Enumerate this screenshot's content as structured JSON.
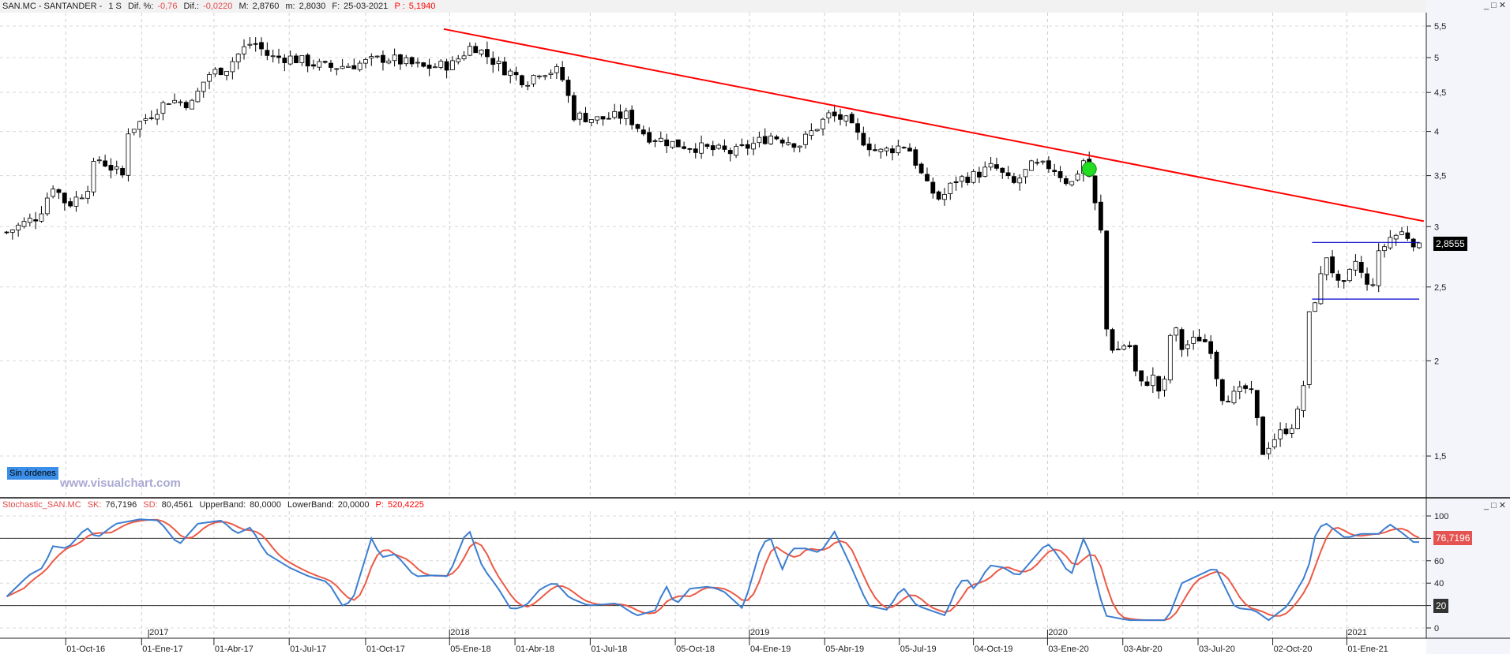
{
  "header": {
    "symbol": "SAN.MC - SANTANDER -",
    "period": "1 S",
    "dif_pct_label": "Dif. %:",
    "dif_pct": "-0,76",
    "dif_label": "Dif.:",
    "dif": "-0,0220",
    "max_label": "M:",
    "max": "2,8760",
    "min_label": "m:",
    "min": "2,8030",
    "date_label": "F:",
    "date": "25-03-2021",
    "p_label": "P :",
    "p": "5,1940"
  },
  "window_buttons": {
    "minimize": "_",
    "maximize": "□",
    "close": "✕"
  },
  "orders_badge": "Sin órdenes",
  "watermark": "www.visualchart.com",
  "last_price_tag": "2,8555",
  "stochastic_header": {
    "name": "Stochastic_SAN.MC",
    "sk_label": "SK:",
    "sk": "76,7196",
    "sd_label": "SD:",
    "sd": "80,4561",
    "upper_label": "UpperBand:",
    "upper": "80,0000",
    "lower_label": "LowerBand:",
    "lower": "20,0000",
    "p_label": "P:",
    "p": "520,4225"
  },
  "stoch_tags": {
    "sk_value": "76,7196",
    "lower_band": "20"
  },
  "colors": {
    "up_body": "#ffffff",
    "down_body": "#000000",
    "trendline": "#ff0000",
    "range_lines": "#0000cc",
    "signal_dot": "#22dd22",
    "sk": "#3c7ed0",
    "sd": "#ec5a45"
  },
  "chart_data": [
    {
      "type": "candlestick",
      "title": "SAN.MC - SANTANDER - 1 S",
      "x_unit": "week index from start",
      "yscale": "log",
      "ylim": [
        1.38,
        5.7
      ],
      "y_ticks": [
        {
          "v": 5.5,
          "label": "5,5"
        },
        {
          "v": 5,
          "label": "5"
        },
        {
          "v": 4.5,
          "label": "4,5"
        },
        {
          "v": 4,
          "label": "4"
        },
        {
          "v": 3.5,
          "label": "3,5"
        },
        {
          "v": 3,
          "label": "3"
        },
        {
          "v": 2.5,
          "label": "2,5"
        },
        {
          "v": 2,
          "label": "2"
        },
        {
          "v": 1.5,
          "label": "1,5"
        }
      ],
      "x_ticks": [
        {
          "w": 10.2,
          "label": "01-Oct-16"
        },
        {
          "w": 23.3,
          "label": "01-Ene-17"
        },
        {
          "w": 35.8,
          "label": "01-Abr-17"
        },
        {
          "w": 48.8,
          "label": "01-Jul-17"
        },
        {
          "w": 62,
          "label": "01-Oct-17"
        },
        {
          "w": 76.5,
          "label": "05-Ene-18"
        },
        {
          "w": 87.8,
          "label": "01-Abr-18"
        },
        {
          "w": 100.8,
          "label": "01-Jul-18"
        },
        {
          "w": 115.5,
          "label": "05-Oct-18"
        },
        {
          "w": 128.3,
          "label": "04-Ene-19"
        },
        {
          "w": 141.3,
          "label": "05-Abr-19"
        },
        {
          "w": 154.2,
          "label": "05-Jul-19"
        },
        {
          "w": 167,
          "label": "04-Oct-19"
        },
        {
          "w": 179.8,
          "label": "03-Ene-20"
        },
        {
          "w": 192.8,
          "label": "03-Abr-20"
        },
        {
          "w": 205.8,
          "label": "03-Jul-20"
        },
        {
          "w": 218.7,
          "label": "02-Oct-20"
        },
        {
          "w": 231.5,
          "label": "01-Ene-21"
        }
      ],
      "year_ticks": [
        {
          "w": 24.5,
          "label": "2017"
        },
        {
          "w": 76.5,
          "label": "2018"
        },
        {
          "w": 128.3,
          "label": "2019"
        },
        {
          "w": 179.8,
          "label": "2020"
        },
        {
          "w": 231.5,
          "label": "2021"
        }
      ],
      "weeks": 244,
      "close_path": [
        [
          0,
          2.95
        ],
        [
          5.5,
          3.1
        ],
        [
          8,
          3.4
        ],
        [
          10.5,
          3.2
        ],
        [
          13.8,
          3.35
        ],
        [
          15.5,
          3.7
        ],
        [
          18.8,
          3.55
        ],
        [
          20,
          3.5
        ],
        [
          20.8,
          4.0
        ],
        [
          23.8,
          4.15
        ],
        [
          28,
          4.4
        ],
        [
          32,
          4.35
        ],
        [
          34.7,
          4.75
        ],
        [
          38,
          4.85
        ],
        [
          40.5,
          5.1
        ],
        [
          42.5,
          5.25
        ],
        [
          45.5,
          5.0
        ],
        [
          48.8,
          5.0
        ],
        [
          55.5,
          4.85
        ],
        [
          60.5,
          4.9
        ],
        [
          65.5,
          5.0
        ],
        [
          72,
          4.85
        ],
        [
          77,
          4.9
        ],
        [
          80.5,
          5.2
        ],
        [
          85.5,
          4.85
        ],
        [
          89.7,
          4.65
        ],
        [
          92,
          4.8
        ],
        [
          95.5,
          4.8
        ],
        [
          98,
          4.2
        ],
        [
          102,
          4.15
        ],
        [
          107,
          4.2
        ],
        [
          110.5,
          3.95
        ],
        [
          115.5,
          3.85
        ],
        [
          120.5,
          3.8
        ],
        [
          125.5,
          3.75
        ],
        [
          129,
          3.85
        ],
        [
          132,
          3.95
        ],
        [
          137,
          3.85
        ],
        [
          142,
          4.2
        ],
        [
          144.7,
          4.15
        ],
        [
          147,
          3.95
        ],
        [
          150.5,
          3.75
        ],
        [
          155.5,
          3.85
        ],
        [
          158.8,
          3.4
        ],
        [
          161.3,
          3.25
        ],
        [
          163.8,
          3.45
        ],
        [
          167,
          3.5
        ],
        [
          170.5,
          3.6
        ],
        [
          173.8,
          3.4
        ],
        [
          177,
          3.6
        ],
        [
          180.5,
          3.6
        ],
        [
          183.8,
          3.4
        ],
        [
          186.3,
          3.7
        ],
        [
          188,
          3.2
        ],
        [
          189,
          2.95
        ],
        [
          190,
          2.2
        ],
        [
          191.3,
          2.05
        ],
        [
          193.8,
          2.12
        ],
        [
          195.5,
          1.85
        ],
        [
          198,
          1.9
        ],
        [
          199.7,
          1.78
        ],
        [
          201.3,
          2.25
        ],
        [
          203,
          2.08
        ],
        [
          206.3,
          2.15
        ],
        [
          208,
          2.08
        ],
        [
          209.7,
          1.8
        ],
        [
          212,
          1.8
        ],
        [
          214.7,
          1.85
        ],
        [
          217,
          1.52
        ],
        [
          218.8,
          1.58
        ],
        [
          222,
          1.65
        ],
        [
          223.8,
          1.75
        ],
        [
          224.7,
          2.25
        ],
        [
          226.3,
          2.45
        ],
        [
          228,
          2.75
        ],
        [
          230.5,
          2.45
        ],
        [
          233,
          2.7
        ],
        [
          235.5,
          2.45
        ],
        [
          237,
          2.75
        ],
        [
          238.8,
          2.9
        ],
        [
          241.3,
          2.95
        ],
        [
          243.3,
          2.8555
        ]
      ],
      "last_price": 2.8555,
      "trendline": [
        [
          75.5,
          5.45
        ],
        [
          244.8,
          3.05
        ]
      ],
      "range_lines": [
        {
          "from": 225.5,
          "to": 244,
          "price": 2.86
        },
        {
          "from": 225.5,
          "to": 244,
          "price": 2.41
        }
      ],
      "signal_dot": [
        187,
        3.57
      ]
    },
    {
      "type": "line",
      "title": "Stochastic_SAN.MC",
      "ylim": [
        0,
        100
      ],
      "y_ticks": [
        100,
        80,
        60,
        40,
        20,
        0
      ],
      "bands": [
        80,
        20
      ],
      "series": [
        {
          "name": "SK",
          "path": [
            [
              0,
              28
            ],
            [
              3.8,
              47
            ],
            [
              6.3,
              54
            ],
            [
              8,
              73
            ],
            [
              10.5,
              71
            ],
            [
              13.8,
              90
            ],
            [
              15.5,
              80
            ],
            [
              18.8,
              93
            ],
            [
              23,
              97
            ],
            [
              26.3,
              96
            ],
            [
              29.7,
              74
            ],
            [
              33,
              93
            ],
            [
              37.2,
              96
            ],
            [
              39.7,
              84
            ],
            [
              42.2,
              90
            ],
            [
              44.7,
              67
            ],
            [
              48.8,
              54
            ],
            [
              52.2,
              46
            ],
            [
              55.5,
              41
            ],
            [
              58,
              20
            ],
            [
              59.7,
              24
            ],
            [
              63,
              80
            ],
            [
              64.7,
              63
            ],
            [
              67.2,
              66
            ],
            [
              70.5,
              46
            ],
            [
              73.8,
              47
            ],
            [
              76.3,
              46
            ],
            [
              79.7,
              90
            ],
            [
              82.2,
              54
            ],
            [
              84.7,
              37
            ],
            [
              87.2,
              16
            ],
            [
              89.7,
              20
            ],
            [
              92.2,
              35
            ],
            [
              94.7,
              41
            ],
            [
              97.2,
              27
            ],
            [
              100.5,
              20
            ],
            [
              105.5,
              22
            ],
            [
              108.8,
              11
            ],
            [
              112.2,
              16
            ],
            [
              113.8,
              39
            ],
            [
              115.5,
              20
            ],
            [
              118,
              35
            ],
            [
              121.3,
              37
            ],
            [
              123.8,
              33
            ],
            [
              127.2,
              17
            ],
            [
              130.5,
              76
            ],
            [
              132.2,
              80
            ],
            [
              133.8,
              50
            ],
            [
              135.5,
              71
            ],
            [
              138,
              71
            ],
            [
              140.5,
              67
            ],
            [
              143,
              86
            ],
            [
              145.5,
              59
            ],
            [
              148.8,
              20
            ],
            [
              152.2,
              16
            ],
            [
              154.7,
              37
            ],
            [
              157.2,
              20
            ],
            [
              162.2,
              11
            ],
            [
              163.8,
              33
            ],
            [
              165.5,
              46
            ],
            [
              167.2,
              34
            ],
            [
              169.7,
              56
            ],
            [
              172.2,
              54
            ],
            [
              174.7,
              46
            ],
            [
              179.7,
              76
            ],
            [
              181.3,
              67
            ],
            [
              183.8,
              46
            ],
            [
              186.3,
              84
            ],
            [
              188,
              46
            ],
            [
              189.7,
              11
            ],
            [
              193.8,
              7
            ],
            [
              197.2,
              7
            ],
            [
              200.5,
              7
            ],
            [
              203,
              40
            ],
            [
              206.3,
              48
            ],
            [
              208.8,
              54
            ],
            [
              212.2,
              18
            ],
            [
              215.5,
              16
            ],
            [
              218,
              7
            ],
            [
              221.3,
              20
            ],
            [
              224.7,
              50
            ],
            [
              226.3,
              89
            ],
            [
              228,
              93
            ],
            [
              231.3,
              80
            ],
            [
              233.8,
              84
            ],
            [
              237.2,
              84
            ],
            [
              238.8,
              93
            ],
            [
              241.3,
              84
            ],
            [
              243,
              76.72
            ]
          ]
        },
        {
          "name": "SD",
          "last": 80.4561
        }
      ]
    }
  ]
}
